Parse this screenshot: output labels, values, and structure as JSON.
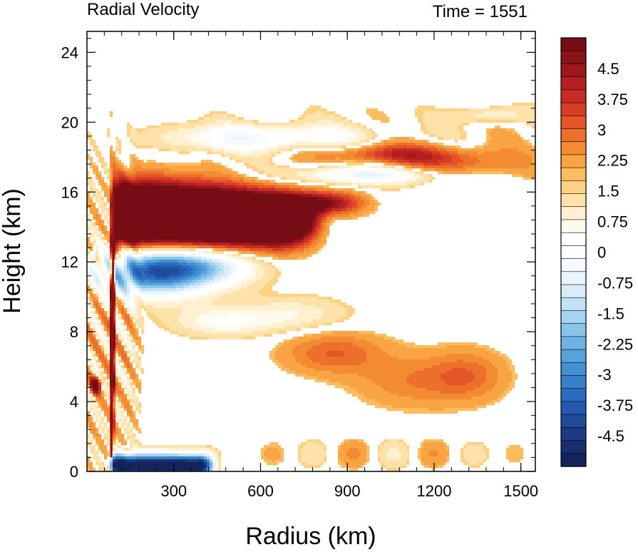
{
  "chart_data": {
    "type": "heatmap",
    "title": "Radial Velocity",
    "subtitle": "Time = 1551",
    "xlabel": "Radius (km)",
    "ylabel": "Height (km)",
    "xlim": [
      0,
      1550
    ],
    "ylim": [
      0,
      25.2
    ],
    "x_ticks": [
      300,
      600,
      900,
      1200,
      1500
    ],
    "x_tick_labels": [
      "300",
      "600",
      "900",
      "1200",
      "1500"
    ],
    "y_ticks": [
      0,
      4,
      8,
      12,
      16,
      20,
      24
    ],
    "y_tick_labels": [
      "0",
      "4",
      "8",
      "12",
      "16",
      "20",
      "24"
    ],
    "colorbar": {
      "min": -5.25,
      "max": 5.25,
      "step": 0.25,
      "labels": [
        "4.5",
        "3.75",
        "3",
        "2.25",
        "1.5",
        "0.75",
        "0",
        "-0.75",
        "-1.5",
        "-2.25",
        "-3",
        "-3.75",
        "-4.5"
      ],
      "label_values": [
        4.5,
        3.75,
        3,
        2.25,
        1.5,
        0.75,
        0,
        -0.75,
        -1.5,
        -2.25,
        -3,
        -3.75,
        -4.5
      ]
    },
    "features": [
      {
        "name": "upper-outflow-core",
        "x_range": [
          85,
          740
        ],
        "z_range": [
          13.0,
          16.1
        ],
        "value": 5.5
      },
      {
        "name": "upper-outflow-tail",
        "x_range": [
          700,
          940
        ],
        "z_range": [
          14.8,
          16.0
        ],
        "value": 2.5
      },
      {
        "name": "mid-inflow",
        "x_range": [
          100,
          520
        ],
        "z_range": [
          10.2,
          13.4
        ],
        "value": -3.8
      },
      {
        "name": "boundary-layer-inflow",
        "x_range": [
          75,
          420
        ],
        "z_range": [
          0,
          1.2
        ],
        "value": -5.0
      },
      {
        "name": "upper-band-positive",
        "x_range": [
          760,
          1420
        ],
        "z_range": [
          17.0,
          19.8
        ],
        "value": 1.6
      },
      {
        "name": "upper-band-negative",
        "x_range": [
          600,
          1320
        ],
        "z_range": [
          16.0,
          17.8
        ],
        "value": -1.8
      },
      {
        "name": "mid-level-positive",
        "x_range": [
          720,
          1440
        ],
        "z_range": [
          4.2,
          7.8
        ],
        "value": 0.9
      },
      {
        "name": "eyewall-edge",
        "x_range": [
          80,
          95
        ],
        "z_range": [
          0.8,
          16.4
        ],
        "value": 4.5
      }
    ]
  }
}
